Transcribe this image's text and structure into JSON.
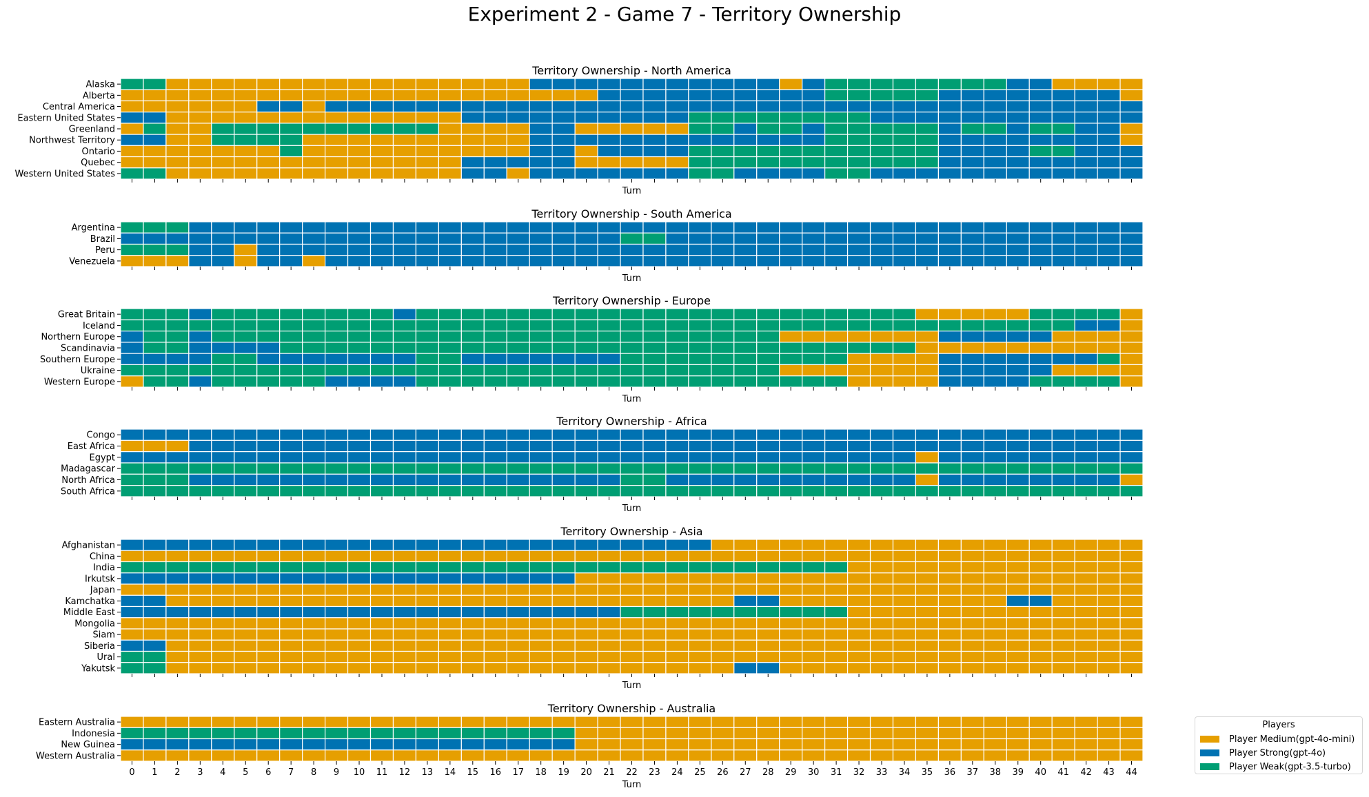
{
  "chart_data": {
    "type": "heatmap",
    "title": "Experiment 2 - Game 7 - Territory Ownership",
    "xlabel": "Turn",
    "turns": [
      0,
      1,
      2,
      3,
      4,
      5,
      6,
      7,
      8,
      9,
      10,
      11,
      12,
      13,
      14,
      15,
      16,
      17,
      18,
      19,
      20,
      21,
      22,
      23,
      24,
      25,
      26,
      27,
      28,
      29,
      30,
      31,
      32,
      33,
      34,
      35,
      36,
      37,
      38,
      39,
      40,
      41,
      42,
      43,
      44
    ],
    "players": {
      "M": {
        "name": "Player Medium(gpt-4o-mini)",
        "color": "#E69F00"
      },
      "S": {
        "name": "Player Strong(gpt-4o)",
        "color": "#0072B2"
      },
      "W": {
        "name": "Player Weak(gpt-3.5-turbo)",
        "color": "#009E73"
      }
    },
    "legend": {
      "title": "Players",
      "position": "lower-right",
      "order": [
        "M",
        "S",
        "W"
      ]
    },
    "cell_encoding": "one character per turn: M = Player Medium, S = Player Strong, W = Player Weak",
    "panels": [
      {
        "title": "Territory Ownership - North America",
        "rows": [
          {
            "territory": "Alaska",
            "owners": "WWMMMMMMMMMMMMMMMMSSSSSSSSSSSMSWWWWWWWWSSMMMM"
          },
          {
            "territory": "Alberta",
            "owners": "MMMMMMMMMMMMMMMMMMMMMSSSSSSSSSSWWWWWSSSSSSSSM"
          },
          {
            "territory": "Central America",
            "owners": "MMMMMMSSMSSSSSSSSSSSSSSSSSSSSSSSSSSSSSSSSSSSS"
          },
          {
            "territory": "Eastern United States",
            "owners": "SSMMMMMMMMMMMMMSSSSSSSSSSWWWWWWWWSSSSSSSSSSSS"
          },
          {
            "territory": "Greenland",
            "owners": "MWMMWWWWWWWWWWMMMMSSMMMMMWWSWWSWWWWWSWWSWWSSM"
          },
          {
            "territory": "Northwest Territory",
            "owners": "SSMMWWWWMMMMMMMMMMSSSSSSSSSSSSSWWWWWSSSSSSSSM"
          },
          {
            "territory": "Ontario",
            "owners": "MMMMMMMWMMMMMMMMMMSSMSSSSWWWWWWWWWWWSSSSWWSSS"
          },
          {
            "territory": "Quebec",
            "owners": "MMMMMMMMMMMMMMMSSSSSMMMMMWWWWWWWWWWWSSSSSSSSS"
          },
          {
            "territory": "Western United States",
            "owners": "WWMMMMMMMMMMMMMSSMSSSSSSSWWSSSSWWSSSSSSSSSSSS"
          }
        ]
      },
      {
        "title": "Territory Ownership - South America",
        "rows": [
          {
            "territory": "Argentina",
            "owners": "WWWSSSSSSSSSSSSSSSSSSSSSSSSSSSSSSSSSSSSSSSSSS"
          },
          {
            "territory": "Brazil",
            "owners": "SSSSSSSSSSSSSSSSSSSSSSWWSSSSSSSSSSSSSSSSSSSSS"
          },
          {
            "territory": "Peru",
            "owners": "WWWSSMSSSSSSSSSSSSSSSSSSSSSSSSSSSSSSSSSSSSSSS"
          },
          {
            "territory": "Venezuela",
            "owners": "MMMSSMSSMSSSSSSSSSSSSSSSSSSSSSSSSSSSSSSSSSSSS"
          }
        ]
      },
      {
        "title": "Territory Ownership - Europe",
        "rows": [
          {
            "territory": "Great Britain",
            "owners": "WWWSWWWWWWWWSWWWWWWWWWWWWWWWWWWWWWWMMMMMWWWWM"
          },
          {
            "territory": "Iceland",
            "owners": "WWWWWWWWWWWWWWWWWWWWWWWWWWWWWWWWWWWWWWWWWWSSM"
          },
          {
            "territory": "Northern Europe",
            "owners": "SWWSWWWWWWWWWWWWWWWWWWWWWWWWWMMMMMMMSSSSSMMMM"
          },
          {
            "territory": "Scandinavia",
            "owners": "SWWSSSSWWWWWWWWWWWWWWWWWWWWWWWWWWWWMMMMMMMMMM"
          },
          {
            "territory": "Southern Europe",
            "owners": "SSSSWWSSSSSSSWWSSSSSSSWWWWWWWWWWMMMMSSSSSSSWM"
          },
          {
            "territory": "Ukraine",
            "owners": "WWWWWWWWWWWWWWWWWWWWWWWWWWWWWMMMMMMMSSSSSMMMM"
          },
          {
            "territory": "Western Europe",
            "owners": "MWWSWWWWWSSSSWWWWWWWWWWWWWWWWWWWMMMMSSSSWWWWM"
          }
        ]
      },
      {
        "title": "Territory Ownership - Africa",
        "rows": [
          {
            "territory": "Congo",
            "owners": "SSSSSSSSSSSSSSSSSSSSSSSSSSSSSSSSSSSSSSSSSSSSS"
          },
          {
            "territory": "East Africa",
            "owners": "MMMSSSSSSSSSSSSSSSSSSSSSSSSSSSSSSSSSSSSSSSSSS"
          },
          {
            "territory": "Egypt",
            "owners": "SSSSSSSSSSSSSSSSSSSSSSSSSSSSSSSSSSSMSSSSSSSSS"
          },
          {
            "territory": "Madagascar",
            "owners": "WWWWWWWWWWWWWWWWWWWWWWWWWWWWWWWWWWWWWWWWWWWWW"
          },
          {
            "territory": "North Africa",
            "owners": "WWWSSSSSSSSSSSSSSSSSSSWWSSSSSSSSSSSMSSSSSSSSM"
          },
          {
            "territory": "South Africa",
            "owners": "WWWWWWWWWWWWWWWWWWWWWWWWWWWWWWWWWWWWWWWWWWWWW"
          }
        ]
      },
      {
        "title": "Territory Ownership - Asia",
        "rows": [
          {
            "territory": "Afghanistan",
            "owners": "SSSSSSSSSSSSSSSSSSSSSSSSSSMMMMMMMMMMMMMMMMMMM"
          },
          {
            "territory": "China",
            "owners": "MMMMMMMMMMMMMMMMMMMMMMMMMMMMMMMMMMMMMMMMMMMMM"
          },
          {
            "territory": "India",
            "owners": "WWWWWWWWWWWWWWWWWWWWWWWWWWWWWWWWMMMMMMMMMMMMM"
          },
          {
            "territory": "Irkutsk",
            "owners": "SSSSSSSSSSSSSSSSSSSSMMMMMMMMMMMMMMMMMMMMMMMMM"
          },
          {
            "territory": "Japan",
            "owners": "MMMMMMMMMMMMMMMMMMMMMMMMMMMMMMMMMMMMMMMMMMMMM"
          },
          {
            "territory": "Kamchatka",
            "owners": "SSMMMMMMMMMMMMMMMMMMMMMMMMMSSMMMMMMMMMMSSMMMM"
          },
          {
            "territory": "Middle East",
            "owners": "SSSSSSSSSSSSSSSSSSSSSSWWWWWWWWWWMMMMMMMMMMMMM"
          },
          {
            "territory": "Mongolia",
            "owners": "MMMMMMMMMMMMMMMMMMMMMMMMMMMMMMMMMMMMMMMMMMMMM"
          },
          {
            "territory": "Siam",
            "owners": "MMMMMMMMMMMMMMMMMMMMMMMMMMMMMMMMMMMMMMMMMMMMM"
          },
          {
            "territory": "Siberia",
            "owners": "SSMMMMMMMMMMMMMMMMMMMMMMMMMMMMMMMMMMMMMMMMMMM"
          },
          {
            "territory": "Ural",
            "owners": "WWMMMMMMMMMMMMMMMMMMMMMMMMMMMMMMMMMMMMMMMMMMM"
          },
          {
            "territory": "Yakutsk",
            "owners": "WWMMMMMMMMMMMMMMMMMMMMMMMMMSSMMMMMMMMMMMMMMMM"
          }
        ]
      },
      {
        "title": "Territory Ownership - Australia",
        "rows": [
          {
            "territory": "Eastern Australia",
            "owners": "MMMMMMMMMMMMMMMMMMMMMMMMMMMMMMMMMMMMMMMMMMMMM"
          },
          {
            "territory": "Indonesia",
            "owners": "WWWWWWWWWWWWWWWWWWWWMMMMMMMMMMMMMMMMMMMMMMMMM"
          },
          {
            "territory": "New Guinea",
            "owners": "SSSSSSSSSSSSSSSSSSSSMMMMMMMMMMMMMMMMMMMMMMMMM"
          },
          {
            "territory": "Western Australia",
            "owners": "MMMMMMMMMMMMMMMMMMMMMMMMMMMMMMMMMMMMMMMMMMMMM"
          }
        ]
      }
    ]
  }
}
